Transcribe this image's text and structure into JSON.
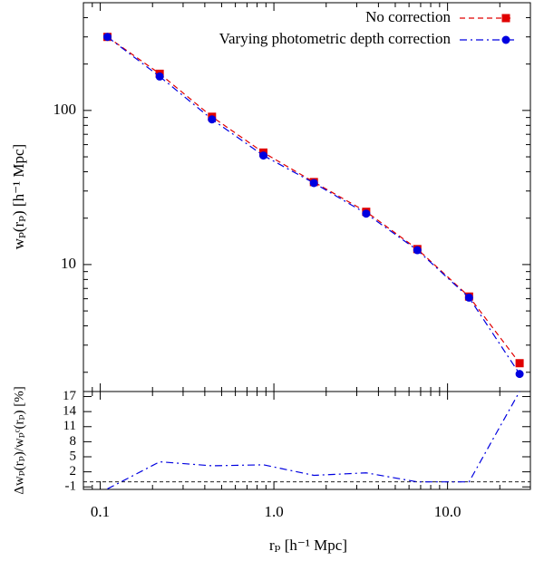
{
  "chart_data": [
    {
      "type": "line",
      "xlabel": "rₚ  [h⁻¹ Mpc]",
      "ylabel": "wₚ(rₚ)  [h⁻¹ Mpc]",
      "log_x": true,
      "log_y": true,
      "xlim": [
        0.08,
        30
      ],
      "ylim": [
        1.5,
        500
      ],
      "xticks": [
        0.1,
        {
          "value": 1,
          "label": "1.0"
        },
        {
          "value": 10,
          "label": "10.0"
        }
      ],
      "yticks": [
        10,
        100
      ],
      "legend": "upper right",
      "x": [
        0.11,
        0.22,
        0.44,
        0.87,
        1.7,
        3.4,
        6.7,
        13.3,
        26
      ],
      "series": [
        {
          "name": "No correction",
          "color": "#e00000",
          "dash": "dashed",
          "marker": "square",
          "values": [
            300,
            173,
            91,
            53.3,
            34.3,
            22,
            12.6,
            6.2,
            2.29
          ]
        },
        {
          "name": "Varying photometric depth correction",
          "color": "#0000e0",
          "dash": "dashdot",
          "marker": "circle",
          "values": [
            300,
            166,
            87.5,
            51,
            33.8,
            21.4,
            12.4,
            6.1,
            1.95
          ]
        }
      ]
    },
    {
      "type": "line",
      "ylabel": "Δwₚ(rₚ)/wₚᶜ(rₚ)  [%]",
      "ylim": [
        -1.5,
        18
      ],
      "yticks": [
        -1,
        2,
        5,
        8,
        11,
        14,
        17
      ],
      "reference_line": 0,
      "series": [
        {
          "color": "#0000e0",
          "dash": "dashdot",
          "values": [
            -1.4,
            4,
            3.2,
            3.4,
            1.3,
            1.8,
            0,
            0,
            18
          ]
        }
      ]
    }
  ]
}
